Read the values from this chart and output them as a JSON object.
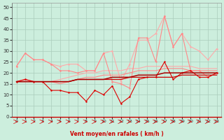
{
  "title": "",
  "xlabel": "Vent moyen/en rafales ( km/h )",
  "x": [
    0,
    1,
    2,
    3,
    4,
    5,
    6,
    7,
    8,
    9,
    10,
    11,
    12,
    13,
    14,
    15,
    16,
    17,
    18,
    19,
    20,
    21,
    22,
    23
  ],
  "series": [
    {
      "name": "rafales_light1",
      "color": "#ffaaaa",
      "linewidth": 0.8,
      "marker": "o",
      "markersize": 1.8,
      "values": [
        23,
        29,
        26,
        26,
        24,
        23,
        24,
        24,
        21,
        21,
        29,
        30,
        16,
        24,
        35,
        35,
        38,
        46,
        32,
        38,
        32,
        30,
        26,
        31
      ]
    },
    {
      "name": "moy_light1",
      "color": "#ffaaaa",
      "linewidth": 0.8,
      "marker": null,
      "markersize": 0,
      "values": [
        16,
        17,
        16,
        16,
        16,
        17,
        18,
        19,
        20,
        20,
        21,
        21,
        21,
        22,
        22,
        23,
        23,
        23,
        23,
        23,
        23,
        22,
        22,
        22
      ]
    },
    {
      "name": "rafales_light2",
      "color": "#ff8888",
      "linewidth": 0.8,
      "marker": "o",
      "markersize": 1.8,
      "values": [
        23,
        29,
        26,
        26,
        24,
        21,
        21,
        20,
        21,
        21,
        29,
        16,
        15,
        13,
        36,
        36,
        25,
        46,
        32,
        38,
        21,
        21,
        18,
        20
      ]
    },
    {
      "name": "moy_light2",
      "color": "#ff8888",
      "linewidth": 0.8,
      "marker": null,
      "markersize": 0,
      "values": [
        16,
        17,
        16,
        16,
        16,
        15,
        16,
        17,
        18,
        18,
        19,
        19,
        19,
        20,
        21,
        21,
        21,
        22,
        22,
        22,
        21,
        21,
        21,
        21
      ]
    },
    {
      "name": "vent_rouge",
      "color": "#dd0000",
      "linewidth": 0.8,
      "marker": "o",
      "markersize": 1.8,
      "values": [
        16,
        17,
        16,
        16,
        12,
        12,
        11,
        11,
        7,
        12,
        10,
        14,
        6,
        9,
        17,
        18,
        18,
        25,
        17,
        20,
        21,
        18,
        18,
        20
      ]
    },
    {
      "name": "moy_rouge1",
      "color": "#cc0000",
      "linewidth": 0.9,
      "marker": null,
      "markersize": 0,
      "values": [
        16,
        16,
        16,
        16,
        16,
        16,
        16,
        17,
        17,
        17,
        17,
        17,
        17,
        18,
        18,
        18,
        18,
        18,
        18,
        19,
        19,
        19,
        19,
        19
      ]
    },
    {
      "name": "moy_rouge2",
      "color": "#aa0000",
      "linewidth": 1.1,
      "marker": null,
      "markersize": 0,
      "values": [
        16,
        16,
        16,
        16,
        16,
        16,
        16,
        17,
        17,
        17,
        17,
        18,
        18,
        18,
        19,
        19,
        19,
        20,
        20,
        20,
        20,
        20,
        20,
        20
      ]
    }
  ],
  "xlim": [
    -0.5,
    23.5
  ],
  "ylim": [
    0,
    52
  ],
  "yticks": [
    0,
    5,
    10,
    15,
    20,
    25,
    30,
    35,
    40,
    45,
    50
  ],
  "xticks": [
    0,
    1,
    2,
    3,
    4,
    5,
    6,
    7,
    8,
    9,
    10,
    11,
    12,
    13,
    14,
    15,
    16,
    17,
    18,
    19,
    20,
    21,
    22,
    23
  ],
  "bg_color": "#cceedd",
  "grid_color": "#aaccbb",
  "arrow_color": "#dd0000",
  "xlabel_color": "#cc0000"
}
